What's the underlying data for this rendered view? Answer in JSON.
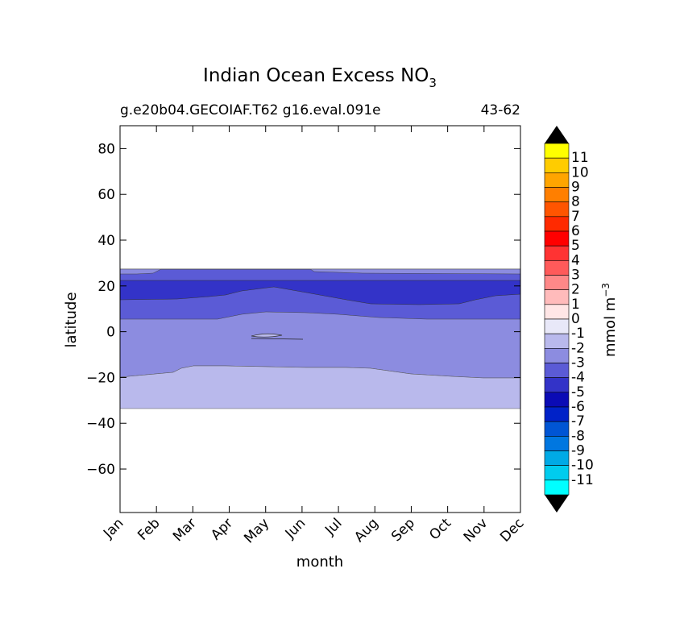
{
  "chart_data": {
    "type": "contourf",
    "title_main": "Indian Ocean Excess NO",
    "title_sub": "3",
    "subtitle_left": "g.e20b04.GECOIAF.T62 g16.eval.091e",
    "subtitle_right": "43-62",
    "xlabel": "month",
    "ylabel": "latitude",
    "x_categories": [
      "Jan",
      "Feb",
      "Mar",
      "Apr",
      "May",
      "Jun",
      "Jul",
      "Aug",
      "Sep",
      "Oct",
      "Nov",
      "Dec"
    ],
    "y_ticks": [
      80,
      60,
      40,
      20,
      0,
      -20,
      -40,
      -60
    ],
    "y_tick_labels": [
      "80",
      "60",
      "40",
      "20",
      "0",
      "−20",
      "−40",
      "−60"
    ],
    "ylim": [
      -79,
      90
    ],
    "colorbar": {
      "label": "mmol m",
      "label_sup": "−3",
      "tick_labels": [
        "11",
        "10",
        "9",
        "8",
        "7",
        "6",
        "5",
        "4",
        "3",
        "2",
        "1",
        "0",
        "-1",
        "-2",
        "-3",
        "-4",
        "-5",
        "-6",
        "-7",
        "-8",
        "-9",
        "-10",
        "-11"
      ],
      "levels": [
        11,
        10,
        9,
        8,
        7,
        6,
        5,
        4,
        3,
        2,
        1,
        0,
        -1,
        -2,
        -3,
        -4,
        -5,
        -6,
        -7,
        -8,
        -9,
        -10,
        -11,
        -12
      ],
      "colors": [
        "#ffff00",
        "#ffcc00",
        "#ffa500",
        "#ff7f00",
        "#ff5500",
        "#ff2a00",
        "#ff0000",
        "#ff3333",
        "#ff5a5a",
        "#ff8888",
        "#ffbbbb",
        "#ffe6e6",
        "#e8e8f8",
        "#b9b9ec",
        "#8c8ce0",
        "#5b5bd6",
        "#3333c8",
        "#0b0bb5",
        "#0022c8",
        "#0055d4",
        "#0077e0",
        "#00aae6",
        "#00ccee",
        "#00ffff"
      ],
      "extend": "both",
      "extend_color": "#000000"
    },
    "regions": [
      {
        "level_range": [
          -3,
          -2
        ],
        "lat_top": 27,
        "lat_bottom": -20
      },
      {
        "level_range": [
          -2,
          -1
        ],
        "lat_top": -15,
        "lat_bottom": -34
      },
      {
        "level_range": [
          -4,
          -3
        ],
        "lat_top": 27,
        "lat_bottom": 5
      },
      {
        "level_range": [
          -5,
          -4
        ],
        "lat_top": 22,
        "lat_bottom": 14
      }
    ]
  }
}
